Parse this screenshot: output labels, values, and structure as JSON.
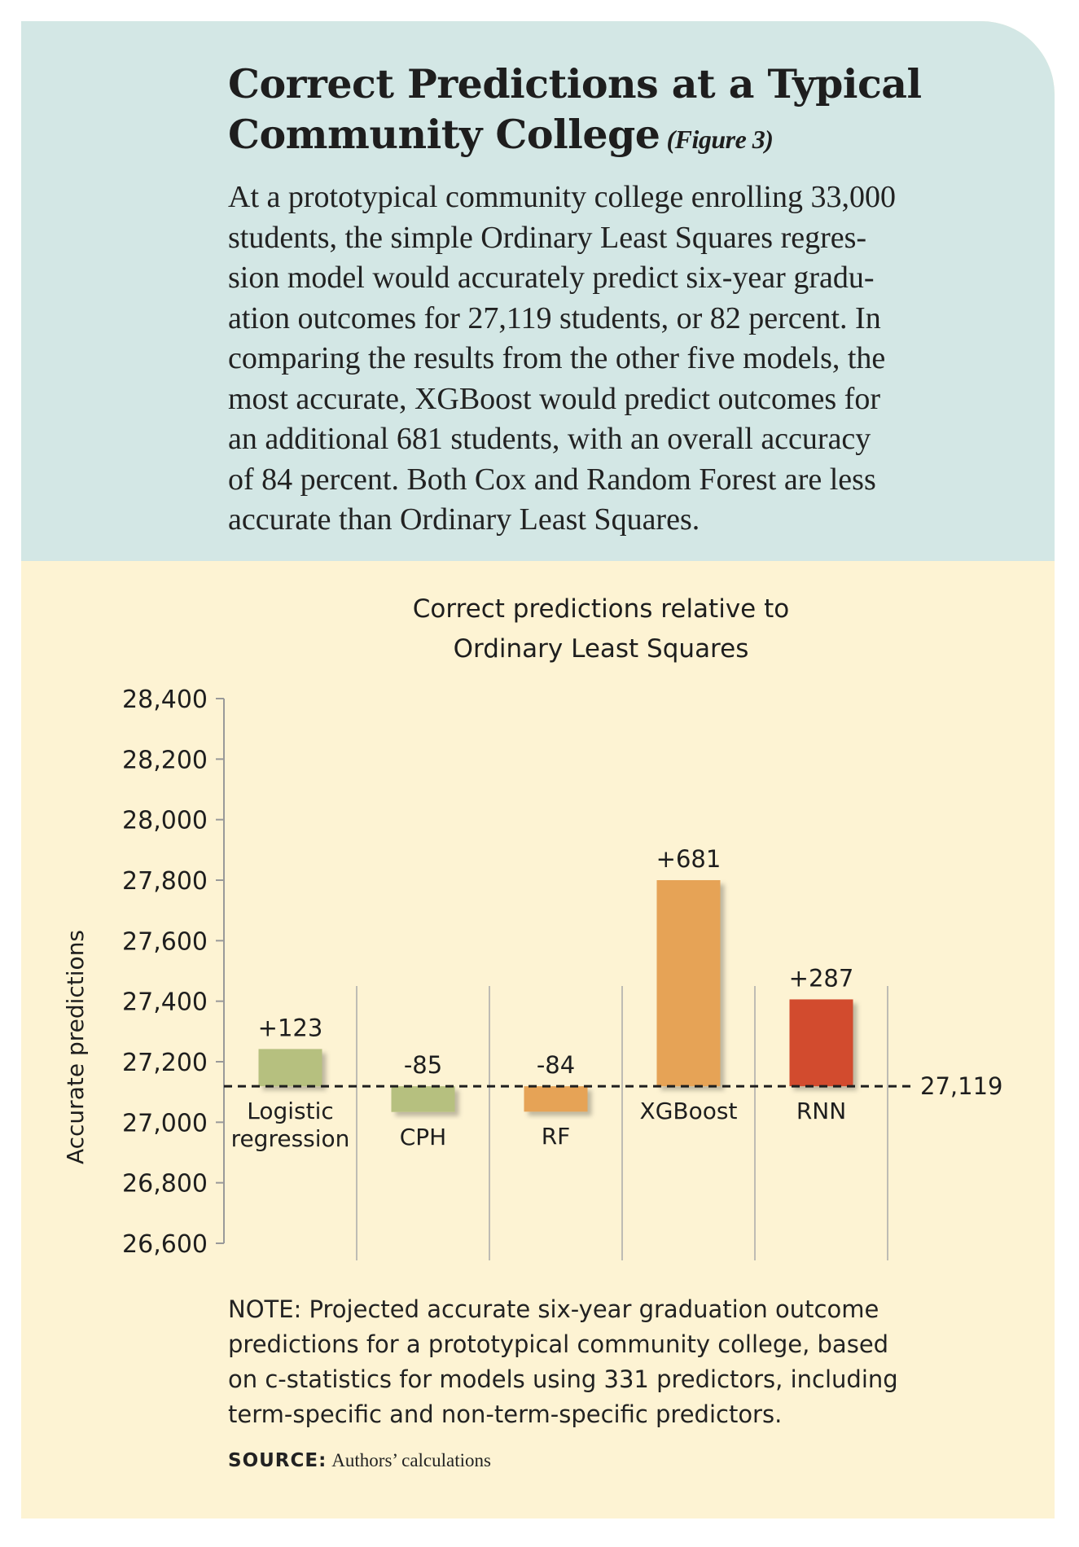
{
  "header": {
    "title_lines": [
      "Correct Predictions at a Typical",
      "Community College"
    ],
    "figure_label": "(Figure 3)",
    "body_lines": [
      "At a prototypical community college enrolling 33,000",
      "students, the simple Ordinary Least Squares regres-",
      "sion model would accurately predict six-year gradu-",
      "ation outcomes for 27,119 students, or 82 percent. In",
      "comparing the results from the other five models, the",
      "most accurate, XGBoost would predict outcomes for",
      "an additional 681 students, with an overall accuracy",
      "of 84 percent. Both Cox and Random Forest are less",
      "accurate than Ordinary Least Squares."
    ]
  },
  "chart_data": {
    "type": "bar",
    "title_lines": [
      "Correct predictions relative to",
      "Ordinary Least Squares"
    ],
    "y_axis_label": "Accurate predictions",
    "categories": [
      "Logistic regression",
      "CPH",
      "RF",
      "XGBoost",
      "RNN"
    ],
    "values": [
      123,
      -85,
      -84,
      681,
      287
    ],
    "value_labels": [
      "+123",
      "-85",
      "-84",
      "+681",
      "+287"
    ],
    "colors": [
      "#b6c07f",
      "#b6c07f",
      "#e6a357",
      "#e6a357",
      "#d24c2d"
    ],
    "baseline": {
      "value": 27119,
      "label": "27,119"
    },
    "ylim": [
      26600,
      28400
    ],
    "yticks": [
      {
        "value": 26600,
        "label": "26,600"
      },
      {
        "value": 26800,
        "label": "26,800"
      },
      {
        "value": 27000,
        "label": "27,000"
      },
      {
        "value": 27200,
        "label": "27,200"
      },
      {
        "value": 27400,
        "label": "27,400"
      },
      {
        "value": 27600,
        "label": "27,600"
      },
      {
        "value": 27800,
        "label": "27,800"
      },
      {
        "value": 28000,
        "label": "28,000"
      },
      {
        "value": 28200,
        "label": "28,200"
      },
      {
        "value": 28400,
        "label": "28,400"
      }
    ]
  },
  "note_lines": [
    "NOTE: Projected accurate six-year graduation outcome",
    "predictions for a prototypical community college, based",
    "on c-statistics for models using 331 predictors, including",
    "term-specific and non-term-specific predictors."
  ],
  "source": {
    "label": "SOURCE:",
    "text": "Authors’ calculations"
  }
}
